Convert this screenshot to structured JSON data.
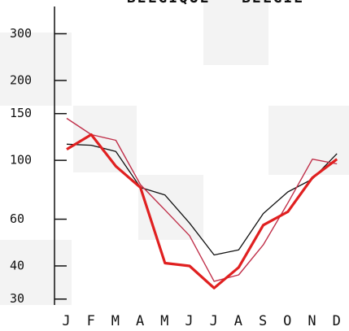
{
  "chart_data": {
    "type": "line",
    "title": "BELGIQUE - BELGIE",
    "categories": [
      "J",
      "F",
      "M",
      "A",
      "M",
      "J",
      "J",
      "A",
      "S",
      "O",
      "N",
      "D"
    ],
    "series": [
      {
        "color": "#111111",
        "values": [
          115,
          114,
          108,
          79,
          74,
          58,
          44,
          46,
          63,
          76,
          85,
          106
        ]
      },
      {
        "color": "#c0304a",
        "values": [
          144,
          125,
          119,
          81,
          65,
          52,
          35,
          37,
          48,
          69,
          101,
          97
        ]
      },
      {
        "color": "#e02020",
        "values": [
          110,
          125,
          95,
          79,
          41,
          40,
          33,
          39.5,
          57,
          64,
          86,
          101
        ]
      }
    ],
    "log_y": true,
    "ylim": [
      28.5,
      380
    ],
    "yticks": [
      30,
      40,
      60,
      100,
      150,
      200,
      300
    ]
  }
}
